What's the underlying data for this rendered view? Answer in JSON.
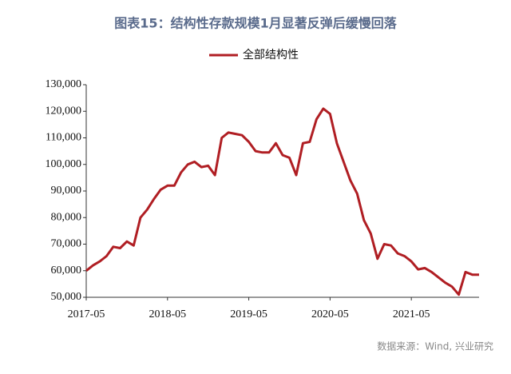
{
  "chart_data": {
    "type": "line",
    "title": "图表15：结构性存款规模1月显著反弹后缓慢回落",
    "source": "数据来源：Wind, 兴业研究",
    "x": [
      "2017-05",
      "2017-06",
      "2017-07",
      "2017-08",
      "2017-09",
      "2017-10",
      "2017-11",
      "2017-12",
      "2018-01",
      "2018-02",
      "2018-03",
      "2018-04",
      "2018-05",
      "2018-06",
      "2018-07",
      "2018-08",
      "2018-09",
      "2018-10",
      "2018-11",
      "2018-12",
      "2019-01",
      "2019-02",
      "2019-03",
      "2019-04",
      "2019-05",
      "2019-06",
      "2019-07",
      "2019-08",
      "2019-09",
      "2019-10",
      "2019-11",
      "2019-12",
      "2020-01",
      "2020-02",
      "2020-03",
      "2020-04",
      "2020-05",
      "2020-06",
      "2020-07",
      "2020-08",
      "2020-09",
      "2020-10",
      "2020-11",
      "2020-12",
      "2021-01",
      "2021-02",
      "2021-03",
      "2021-04",
      "2021-05",
      "2021-06",
      "2021-07",
      "2021-08",
      "2021-09",
      "2021-10",
      "2021-11",
      "2021-12",
      "2022-01",
      "2022-02",
      "2022-03"
    ],
    "series": [
      {
        "name": "全部结构性",
        "color": "#b01e23",
        "values": [
          60000,
          62000,
          63500,
          65500,
          69000,
          68500,
          71000,
          69500,
          80000,
          83000,
          87000,
          90500,
          92000,
          92000,
          97000,
          100000,
          101000,
          99000,
          99500,
          96000,
          110000,
          112000,
          111500,
          111000,
          108500,
          105000,
          104500,
          104500,
          108000,
          103500,
          102500,
          96000,
          108000,
          108500,
          117000,
          121000,
          119000,
          108000,
          101000,
          94000,
          89000,
          79000,
          74000,
          64500,
          70000,
          69500,
          66500,
          65500,
          63500,
          60500,
          61000,
          59500,
          57500,
          55500,
          54000,
          51000,
          59500,
          58500,
          58500
        ]
      }
    ],
    "xlim": [
      "2017-05",
      "2022-03"
    ],
    "xticks": [
      "2017-05",
      "2018-05",
      "2019-05",
      "2020-05",
      "2021-05"
    ],
    "ylim": [
      50000,
      130000
    ],
    "yticks": [
      {
        "value": 50000,
        "label": "50,000"
      },
      {
        "value": 60000,
        "label": "60,000"
      },
      {
        "value": 70000,
        "label": "70,000"
      },
      {
        "value": 80000,
        "label": "80,000"
      },
      {
        "value": 90000,
        "label": "90,000"
      },
      {
        "value": 100000,
        "label": "100,000"
      },
      {
        "value": 110000,
        "label": "110,000"
      },
      {
        "value": 120000,
        "label": "120,000"
      },
      {
        "value": 130000,
        "label": "130,000"
      }
    ],
    "grid": false,
    "legend": "top"
  }
}
